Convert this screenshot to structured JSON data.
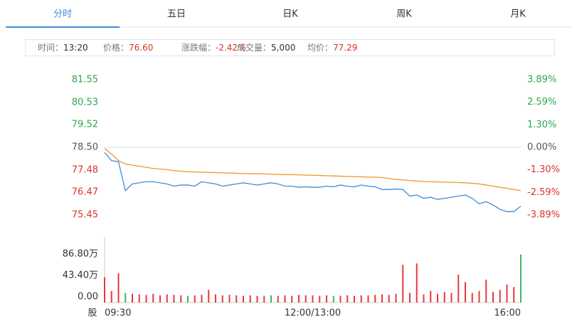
{
  "tabs": [
    "分时",
    "五日",
    "日K",
    "周K",
    "月K"
  ],
  "info": [
    {
      "label": "时间：",
      "value": "13:20"
    },
    {
      "label": "价格：",
      "value": "76.60"
    },
    {
      "label": "涨跌幅：",
      "value": "-2.42%"
    },
    {
      "label": "成交量：",
      "value": "5,000"
    },
    {
      "label": "均价：",
      "value": "77.29"
    }
  ],
  "chart_data": [
    {
      "type": "line",
      "categories": [
        "09:30",
        null,
        null,
        null,
        null,
        null,
        null,
        null,
        null,
        null,
        null,
        null,
        null,
        null,
        null,
        null,
        null,
        null,
        null,
        null,
        null,
        null,
        null,
        null,
        null,
        null,
        null,
        null,
        null,
        null,
        "12:00/13:00",
        null,
        null,
        null,
        null,
        null,
        null,
        null,
        null,
        null,
        null,
        null,
        null,
        null,
        null,
        null,
        null,
        null,
        null,
        null,
        null,
        null,
        null,
        null,
        null,
        null,
        null,
        null,
        null,
        null,
        "16:00"
      ],
      "series": [
        {
          "color": "#3d8fd9",
          "values": [
            78.27,
            77.9,
            77.85,
            76.55,
            76.85,
            76.9,
            76.95,
            76.95,
            76.9,
            76.85,
            76.75,
            76.8,
            76.8,
            76.75,
            76.95,
            76.9,
            76.85,
            76.75,
            76.8,
            76.85,
            76.9,
            76.85,
            76.8,
            76.85,
            76.9,
            76.85,
            76.75,
            76.75,
            76.7,
            76.72,
            76.7,
            76.7,
            76.75,
            76.72,
            76.8,
            76.75,
            76.72,
            76.8,
            76.75,
            76.72,
            76.6,
            76.6,
            76.62,
            76.6,
            76.3,
            76.35,
            76.2,
            76.25,
            76.15,
            76.2,
            76.25,
            76.3,
            76.35,
            76.2,
            75.95,
            76.05,
            75.9,
            75.7,
            75.6,
            75.6,
            75.85
          ]
        },
        {
          "color": "#f0982a",
          "values": [
            78.45,
            78.2,
            77.9,
            77.75,
            77.7,
            77.65,
            77.6,
            77.55,
            77.52,
            77.5,
            77.45,
            77.42,
            77.4,
            77.39,
            77.38,
            77.37,
            77.36,
            77.35,
            77.34,
            77.33,
            77.32,
            77.31,
            77.31,
            77.3,
            77.29,
            77.28,
            77.27,
            77.27,
            77.26,
            77.25,
            77.24,
            77.23,
            77.22,
            77.21,
            77.2,
            77.19,
            77.18,
            77.17,
            77.16,
            77.15,
            77.14,
            77.1,
            77.05,
            77.03,
            77.0,
            76.98,
            76.96,
            76.95,
            76.94,
            76.93,
            76.92,
            76.91,
            76.9,
            76.88,
            76.85,
            76.8,
            76.75,
            76.7,
            76.65,
            76.6,
            76.55
          ]
        }
      ],
      "ylim": [
        75.45,
        81.55
      ],
      "yticks": [
        81.55,
        80.53,
        79.52,
        {
          "value": 78.5,
          "label": "78.50"
        },
        77.48,
        76.47,
        75.45
      ],
      "y2lim": [
        -3.89,
        3.89
      ],
      "y2ticks": [
        {
          "value": 3.89,
          "label": "3.89%"
        },
        {
          "value": 2.59,
          "label": "2.59%"
        },
        {
          "value": 1.3,
          "label": "1.30%"
        },
        {
          "value": 0,
          "label": "0.00%"
        },
        {
          "value": -1.3,
          "label": "-1.30%"
        },
        {
          "value": -2.59,
          "label": "-2.59%"
        },
        {
          "value": -3.89,
          "label": "-3.89%"
        }
      ]
    },
    {
      "type": "bar",
      "y_label": "股",
      "values": [
        40,
        12,
        48,
        8,
        6,
        5,
        4,
        6,
        3,
        5,
        4,
        3,
        2,
        3,
        4,
        14,
        5,
        3,
        4,
        3,
        2,
        3,
        2,
        2,
        3,
        2,
        3,
        2,
        4,
        3,
        3,
        2,
        3,
        2,
        2,
        3,
        2,
        3,
        3,
        4,
        5,
        4,
        6,
        65,
        8,
        68,
        5,
        12,
        6,
        10,
        8,
        45,
        30,
        8,
        12,
        35,
        10,
        14,
        25,
        20,
        86
      ],
      "colors": [
        "#e8383d",
        "#e8383d",
        "#e8383d",
        "#3cb371",
        "#e8383d",
        "#e8383d",
        "#e8383d",
        "#e8383d",
        "#e8383d",
        "#e8383d",
        "#e8383d",
        "#e8383d",
        "#3cb371",
        "#e8383d",
        "#e8383d",
        "#e8383d",
        "#e8383d",
        "#e8383d",
        "#e8383d",
        "#e8383d",
        "#e8383d",
        "#e8383d",
        "#e8383d",
        "#e8383d",
        "#3cb371",
        "#e8383d",
        "#e8383d",
        "#e8383d",
        "#e8383d",
        "#e8383d",
        "#e8383d",
        "#e8383d",
        "#e8383d",
        "#3cb371",
        "#e8383d",
        "#e8383d",
        "#e8383d",
        "#e8383d",
        "#e8383d",
        "#e8383d",
        "#e8383d",
        "#e8383d",
        "#e8383d",
        "#e8383d",
        "#e8383d",
        "#e8383d",
        "#e8383d",
        "#e8383d",
        "#e8383d",
        "#e8383d",
        "#e8383d",
        "#e8383d",
        "#e8383d",
        "#e8383d",
        "#e8383d",
        "#e8383d",
        "#e8383d",
        "#e8383d",
        "#e8383d",
        "#e8383d",
        "#3cb371"
      ],
      "ylim": [
        0,
        86.8
      ],
      "yticks": [
        {
          "value": 0,
          "label": "0.00"
        },
        {
          "value": 43.4,
          "label": "43.40万"
        },
        {
          "value": 86.8,
          "label": "86.80万"
        }
      ]
    }
  ]
}
